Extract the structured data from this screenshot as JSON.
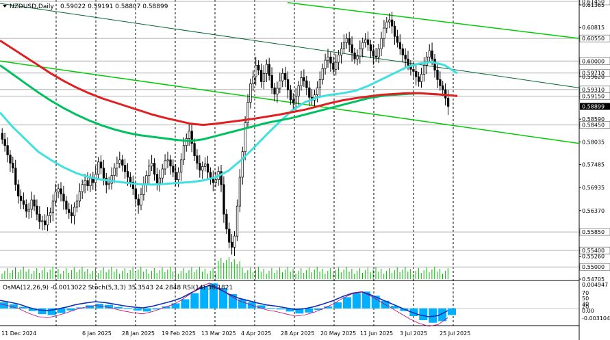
{
  "chart_data": {
    "type": "candlestick",
    "header": {
      "symbol": "NZDUSD,Daily",
      "ohlc": "0.59022 0.59191 0.58807 0.58899"
    },
    "price_axis": {
      "min": 0.54705,
      "max": 0.6145,
      "ticks": [
        "0.61450",
        "0.61365",
        "0.60815",
        "0.60550",
        "0.60000",
        "0.59710",
        "0.59620",
        "0.59310",
        "0.59150",
        "0.58899",
        "0.58590",
        "0.58450",
        "0.58035",
        "0.57485",
        "0.56935",
        "0.56370",
        "0.55850",
        "0.55400",
        "0.55260",
        "0.55000",
        "0.54705"
      ],
      "highlighted": [
        "0.61450",
        "0.60550",
        "0.60000",
        "0.59710",
        "0.59310",
        "0.59150",
        "0.58450",
        "0.55850",
        "0.55400",
        "0.55000"
      ],
      "current_price": "0.58899"
    },
    "date_axis": [
      "11 Dec 2024",
      "6 Jan 2025",
      "28 Jan 2025",
      "19 Feb 2025",
      "13 Mar 2025",
      "4 Apr 2025",
      "28 Apr 2025",
      "20 May 2025",
      "11 Jun 2025",
      "3 Jul 2025",
      "25 Jul 2025"
    ],
    "candles_close": [
      0.581,
      0.5795,
      0.5772,
      0.5752,
      0.574,
      0.57,
      0.5672,
      0.5661,
      0.5652,
      0.5635,
      0.564,
      0.5663,
      0.5648,
      0.5628,
      0.561,
      0.5612,
      0.5602,
      0.5625,
      0.5632,
      0.566,
      0.5682,
      0.569,
      0.5677,
      0.566,
      0.564,
      0.5632,
      0.5624,
      0.5645,
      0.566,
      0.5683,
      0.57,
      0.571,
      0.5697,
      0.5715,
      0.5705,
      0.5725,
      0.5755,
      0.574,
      0.5716,
      0.57,
      0.5703,
      0.5722,
      0.574,
      0.5752,
      0.576,
      0.5747,
      0.5732,
      0.5718,
      0.5706,
      0.569,
      0.5665,
      0.565,
      0.5676,
      0.57,
      0.5722,
      0.5745,
      0.5752,
      0.5725,
      0.5704,
      0.5716,
      0.5738,
      0.5758,
      0.576,
      0.5745,
      0.573,
      0.5712,
      0.573,
      0.576,
      0.5795,
      0.5812,
      0.583,
      0.58,
      0.577,
      0.5752,
      0.5735,
      0.5744,
      0.575,
      0.573,
      0.5718,
      0.5705,
      0.5712,
      0.5732,
      0.57,
      0.5628,
      0.5592,
      0.556,
      0.5548,
      0.5575,
      0.5648,
      0.5718,
      0.578,
      0.585,
      0.59,
      0.5945,
      0.5962,
      0.599,
      0.5978,
      0.595,
      0.597,
      0.5992,
      0.5965,
      0.5935,
      0.592,
      0.5934,
      0.5952,
      0.597,
      0.5955,
      0.593,
      0.5906,
      0.5898,
      0.5915,
      0.594,
      0.596,
      0.5952,
      0.5935,
      0.5912,
      0.5905,
      0.5918,
      0.5935,
      0.5955,
      0.5982,
      0.6002,
      0.601,
      0.5995,
      0.598,
      0.5997,
      0.6015,
      0.603,
      0.6045,
      0.6055,
      0.604,
      0.602,
      0.6005,
      0.6012,
      0.603,
      0.6045,
      0.6052,
      0.604,
      0.6025,
      0.6012,
      0.601,
      0.603,
      0.6055,
      0.608,
      0.6095,
      0.61,
      0.6085,
      0.606,
      0.6045,
      0.603,
      0.6015,
      0.6005,
      0.599,
      0.598,
      0.5975,
      0.5962,
      0.595,
      0.5968,
      0.599,
      0.601,
      0.6025,
      0.6005,
      0.5978,
      0.5955,
      0.594,
      0.593,
      0.591,
      0.589
    ],
    "moving_averages": [
      {
        "name": "MA fast",
        "color": "#40e0e0",
        "values": [
          0.5875,
          0.584,
          0.581,
          0.578,
          0.576,
          0.5742,
          0.5728,
          0.5718,
          0.5712,
          0.5708,
          0.5704,
          0.5701,
          0.57,
          0.5702,
          0.5704,
          0.5706,
          0.571,
          0.5718,
          0.5734,
          0.576,
          0.579,
          0.5822,
          0.5852,
          0.588,
          0.59,
          0.5912,
          0.5918,
          0.5922,
          0.5928,
          0.594,
          0.5955,
          0.597,
          0.5985,
          0.5994,
          0.5998,
          0.599,
          0.597
        ]
      },
      {
        "name": "MA medium",
        "color": "#00c060",
        "values": [
          0.599,
          0.5968,
          0.5946,
          0.5924,
          0.5904,
          0.5886,
          0.587,
          0.5856,
          0.5844,
          0.5834,
          0.5826,
          0.582,
          0.5816,
          0.5812,
          0.5808,
          0.5806,
          0.581,
          0.5818,
          0.5826,
          0.5834,
          0.5842,
          0.585,
          0.5856,
          0.5862,
          0.587,
          0.5878,
          0.5886,
          0.5894,
          0.5902,
          0.591,
          0.5915,
          0.5918,
          0.592,
          0.5922,
          0.592,
          0.5918,
          0.5915
        ]
      },
      {
        "name": "MA slow",
        "color": "#e02020",
        "values": [
          0.605,
          0.603,
          0.601,
          0.599,
          0.597,
          0.5952,
          0.5936,
          0.5922,
          0.591,
          0.59,
          0.589,
          0.588,
          0.587,
          0.5862,
          0.5855,
          0.5848,
          0.5845,
          0.5848,
          0.5852,
          0.5856,
          0.586,
          0.5865,
          0.587,
          0.5876,
          0.5882,
          0.589,
          0.5898,
          0.5905,
          0.591,
          0.5914,
          0.5918,
          0.592,
          0.5922,
          0.5922,
          0.592,
          0.5918,
          0.5915
        ]
      }
    ],
    "indicator_header": "OsMA(12,26,9) -0.0013022  Stoch(5,3,3) 35.3543 24.2848  RSI(14) 38.1821",
    "indicator_axis": [
      "0.004947",
      "70",
      "50",
      "30",
      "20",
      "0.00",
      "-0.003104"
    ],
    "indicator_values": [
      0.0012,
      0.0008,
      0.0003,
      -0.0005,
      -0.0011,
      -0.0013,
      -0.0009,
      -0.0004,
      0.0002,
      0.0006,
      0.0009,
      0.0007,
      0.0003,
      -0.0001,
      -0.0004,
      -0.0006,
      -0.0002,
      0.0004,
      0.001,
      0.0018,
      0.003,
      0.0042,
      0.0049,
      0.004,
      0.0028,
      0.0018,
      0.0012,
      0.0006,
      0.0001,
      -0.0002,
      -0.0006,
      -0.001,
      -0.0008,
      -0.0003,
      0.0004,
      0.0012,
      0.0022,
      0.003,
      0.0033,
      0.0025,
      0.0015,
      0.0005,
      -0.0005,
      -0.0015,
      -0.0023,
      -0.0028,
      -0.0025,
      -0.0013
    ]
  },
  "colors": {
    "bull": "#000000",
    "bear": "#000000",
    "green_channel": "#00cc00",
    "darkgreen_channel": "#006633",
    "volume": "#00bb00",
    "osma": "#00b0ff",
    "rsi": "#1030b0",
    "stoch": "#c00070"
  }
}
